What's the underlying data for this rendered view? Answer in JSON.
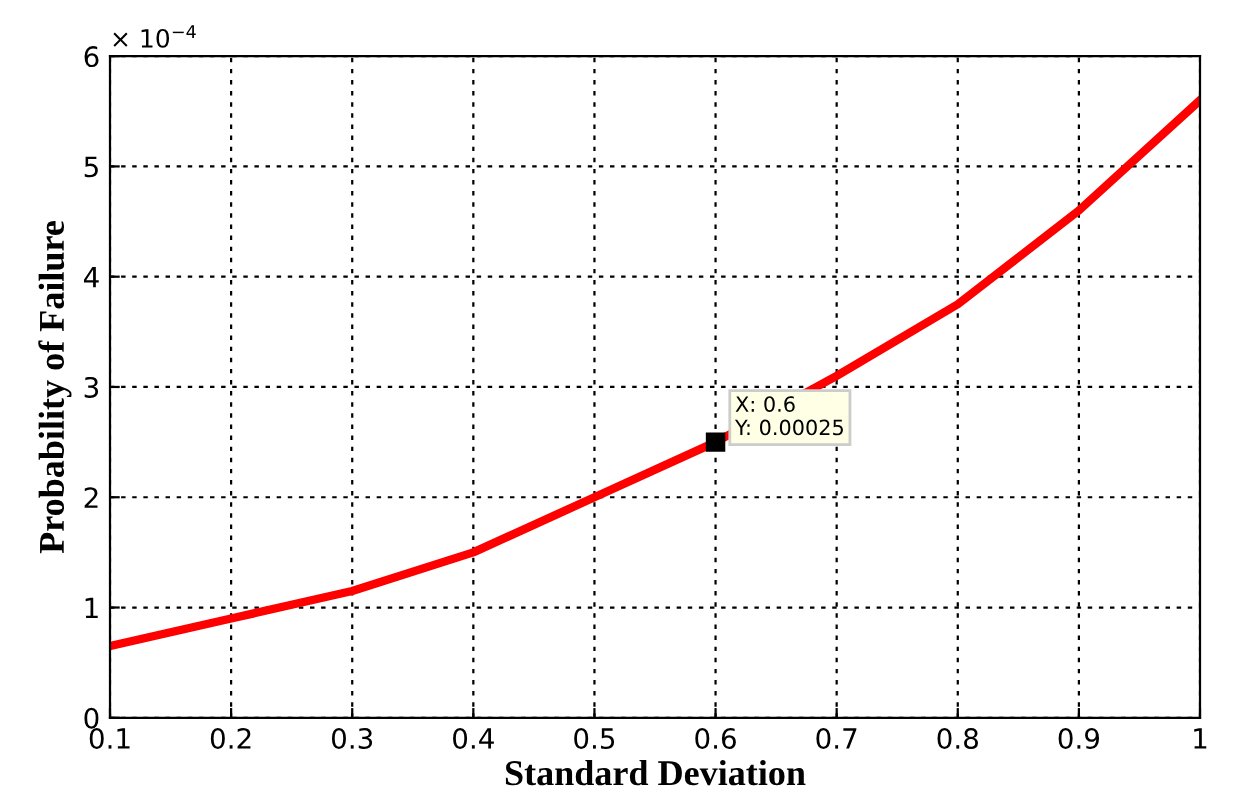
{
  "chart_data": {
    "type": "line",
    "xlabel": "Standard Deviation",
    "ylabel": "Probability of Failure",
    "x": [
      0.1,
      0.2,
      0.3,
      0.4,
      0.5,
      0.6,
      0.7,
      0.8,
      0.9,
      1.0
    ],
    "series": [
      {
        "color": "#ff0000",
        "values": [
          0.65,
          0.9,
          1.15,
          1.5,
          2,
          2.5,
          3.1,
          3.75,
          4.6,
          5.6
        ]
      }
    ],
    "xlim": [
      0.1,
      1
    ],
    "xticks": [
      0.1,
      0.2,
      0.3,
      0.4,
      0.5,
      0.6,
      0.7,
      0.8,
      0.9,
      1
    ],
    "ylim": [
      0,
      6
    ],
    "yticks": [
      0,
      1,
      2,
      3,
      4,
      5,
      6
    ],
    "annotations": [
      "× 10$^{−4}$",
      {
        "text": "X: 0.6\nY: 0.00025",
        "x": 0.6,
        "y": 2.5
      }
    ],
    "grid": true,
    "legend": false,
    "marker": "none",
    "line_style": "solid"
  }
}
